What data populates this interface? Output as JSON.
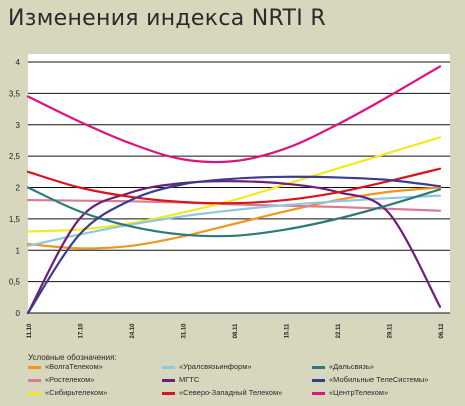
{
  "header": {
    "title": "Изменения индекса NRTI R"
  },
  "legend_title": "Условные обозначения:",
  "chart_data": {
    "type": "line",
    "title": "Изменения индекса NRTI R",
    "xlabel": "",
    "ylabel": "",
    "ylim": [
      0,
      4
    ],
    "yticks": [
      "0",
      "0,5",
      "1",
      "1,5",
      "2",
      "2,5",
      "3",
      "3,5",
      "4"
    ],
    "x_tick_labels": [
      "11.10",
      "17.10",
      "24.10",
      "31.10",
      "08.11",
      "15.11",
      "22.11",
      "29.11",
      "06.12"
    ],
    "x": [
      0,
      1,
      2,
      3,
      4,
      5,
      6,
      7,
      8
    ],
    "grid": "horizontal",
    "series": [
      {
        "name": "«ВолгаТелеком»",
        "color": "#f0961e",
        "values": [
          1.1,
          1.03,
          1.07,
          1.22,
          1.42,
          1.62,
          1.8,
          1.93,
          2.0
        ]
      },
      {
        "name": "«Ростелеком»",
        "color": "#d97b92",
        "values": [
          1.8,
          1.79,
          1.78,
          1.76,
          1.73,
          1.71,
          1.69,
          1.66,
          1.63
        ]
      },
      {
        "name": "«Сибирьтелеком»",
        "color": "#f5e81e",
        "values": [
          1.3,
          1.33,
          1.43,
          1.6,
          1.8,
          2.05,
          2.3,
          2.55,
          2.8
        ]
      },
      {
        "name": "«Уралсвязьинформ»",
        "color": "#8ec8e0",
        "values": [
          1.07,
          1.25,
          1.41,
          1.54,
          1.64,
          1.72,
          1.78,
          1.83,
          1.87
        ]
      },
      {
        "name": "МГТС",
        "color": "#6e1f78",
        "values": [
          0.0,
          1.5,
          1.92,
          2.07,
          2.1,
          2.06,
          1.93,
          1.6,
          0.1
        ]
      },
      {
        "name": "«Северо-Западный Телеком»",
        "color": "#d8141c",
        "values": [
          2.25,
          2.0,
          1.85,
          1.77,
          1.75,
          1.8,
          1.92,
          2.1,
          2.3
        ]
      },
      {
        "name": "«Дальсвязь»",
        "color": "#2a7a78",
        "values": [
          2.0,
          1.62,
          1.38,
          1.25,
          1.23,
          1.33,
          1.5,
          1.72,
          1.97
        ]
      },
      {
        "name": "«Мобильные ТелеСистемы»",
        "color": "#3a3e8c",
        "values": [
          0.0,
          1.25,
          1.8,
          2.05,
          2.14,
          2.17,
          2.16,
          2.12,
          2.02
        ]
      },
      {
        "name": "«ЦентрТелеком»",
        "color": "#e0127e",
        "values": [
          3.45,
          3.05,
          2.7,
          2.45,
          2.42,
          2.62,
          3.0,
          3.45,
          3.93
        ]
      }
    ]
  }
}
